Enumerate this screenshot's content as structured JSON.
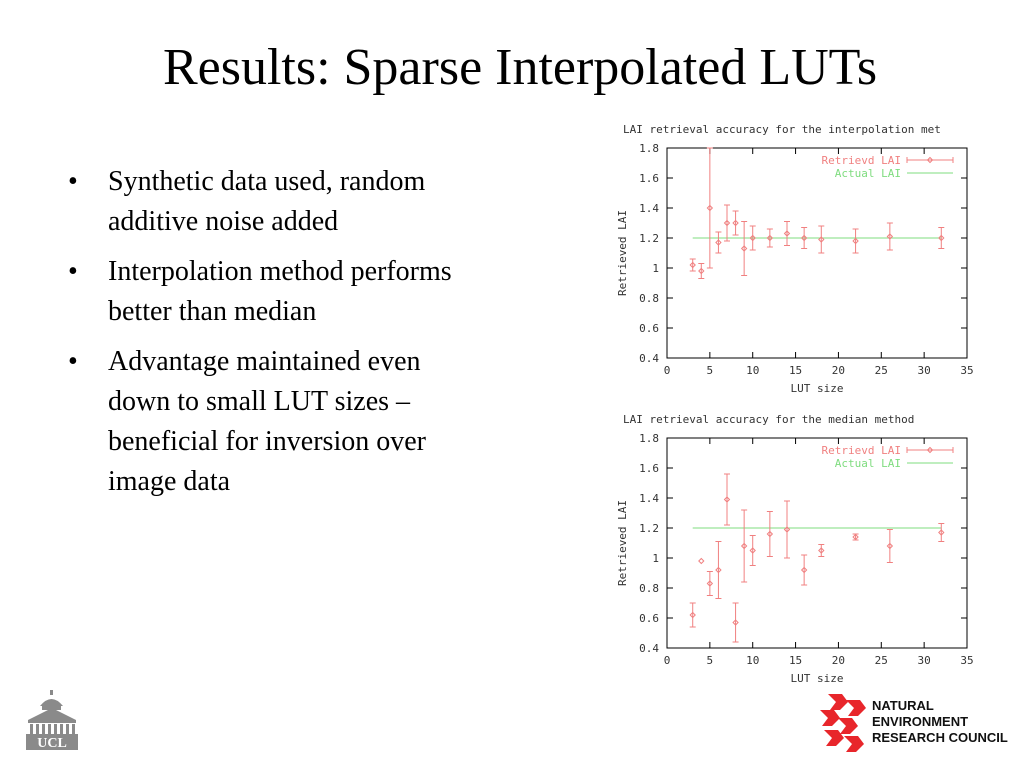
{
  "slide": {
    "title": "Results: Sparse Interpolated LUTs",
    "bullets": [
      "Synthetic data used, random additive noise added",
      "Interpolation method performs better than median",
      "Advantage maintained even down to small LUT sizes – beneficial for inversion over image data"
    ]
  },
  "logos": {
    "ucl_text": "UCL",
    "nerc_lines": [
      "NATURAL",
      "ENVIRONMENT",
      "RESEARCH COUNCIL"
    ]
  },
  "colors": {
    "retrieved": "#f08080",
    "actual": "#7fdc7f",
    "axis": "#000000",
    "nerc_red": "#e8262b"
  },
  "chart_data": [
    {
      "type": "scatter",
      "title": "LAI retrieval accuracy for the interpolation met",
      "xlabel": "LUT size",
      "ylabel": "Retrieved LAI",
      "xlim": [
        0,
        35
      ],
      "ylim": [
        0.4,
        1.8
      ],
      "xticks": [
        "0",
        "5",
        "10",
        "15",
        "20",
        "25",
        "30",
        "35"
      ],
      "yticks": [
        "0.4",
        "0.6",
        "0.8",
        "1",
        "1.2",
        "1.4",
        "1.6",
        "1.8"
      ],
      "grid": false,
      "legend": "top-right",
      "series": [
        {
          "name": "Retrievd LAI",
          "style": "errorbars",
          "x": [
            3,
            4,
            5,
            6,
            7,
            8,
            9,
            10,
            12,
            14,
            16,
            18,
            22,
            26,
            32
          ],
          "y": [
            1.02,
            0.98,
            1.4,
            1.17,
            1.3,
            1.3,
            1.13,
            1.2,
            1.2,
            1.23,
            1.2,
            1.19,
            1.18,
            1.21,
            1.2
          ],
          "err": [
            0.04,
            0.05,
            0.4,
            0.07,
            0.12,
            0.08,
            0.18,
            0.08,
            0.06,
            0.08,
            0.07,
            0.09,
            0.08,
            0.09,
            0.07
          ]
        },
        {
          "name": "Actual LAI",
          "style": "line",
          "x": [
            3,
            32
          ],
          "y": [
            1.2,
            1.2
          ]
        }
      ]
    },
    {
      "type": "scatter",
      "title": "LAI retrieval accuracy for the median method",
      "xlabel": "LUT size",
      "ylabel": "Retrieved LAI",
      "xlim": [
        0,
        35
      ],
      "ylim": [
        0.4,
        1.8
      ],
      "xticks": [
        "0",
        "5",
        "10",
        "15",
        "20",
        "25",
        "30",
        "35"
      ],
      "yticks": [
        "0.4",
        "0.6",
        "0.8",
        "1",
        "1.2",
        "1.4",
        "1.6",
        "1.8"
      ],
      "grid": false,
      "legend": "top-right",
      "series": [
        {
          "name": "Retrievd LAI",
          "style": "errorbars",
          "x": [
            3,
            4,
            5,
            6,
            7,
            8,
            9,
            10,
            12,
            14,
            16,
            18,
            22,
            26,
            32
          ],
          "y": [
            0.62,
            0.98,
            0.83,
            0.92,
            1.39,
            0.57,
            1.08,
            1.05,
            1.16,
            1.19,
            0.92,
            1.05,
            1.14,
            1.08,
            1.17
          ],
          "err": [
            0.08,
            0.0,
            0.08,
            0.19,
            0.17,
            0.13,
            0.24,
            0.1,
            0.15,
            0.19,
            0.1,
            0.04,
            0.02,
            0.11,
            0.06
          ]
        },
        {
          "name": "Actual LAI",
          "style": "line",
          "x": [
            3,
            32
          ],
          "y": [
            1.2,
            1.2
          ]
        }
      ]
    }
  ]
}
